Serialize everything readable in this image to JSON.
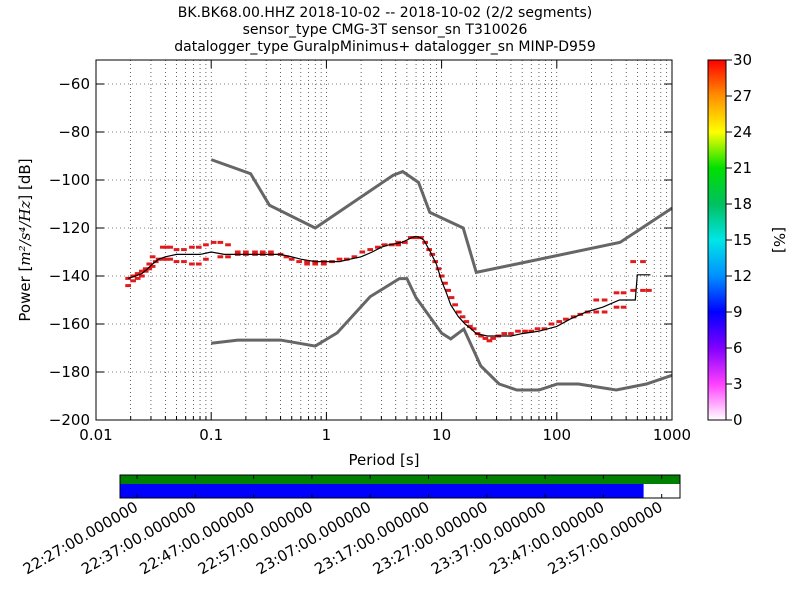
{
  "title_lines": [
    "BK.BK68.00.HHZ   2018-10-02 -- 2018-10-02  (2/2 segments)",
    "sensor_type CMG-3T sensor_sn T310026",
    "datalogger_type GuralpMinimus+ datalogger_sn MINP-D959"
  ],
  "xlabel": "Period [s]",
  "ylabel_parts": {
    "pre": "Power [",
    "math": "m²/s⁴/Hz",
    "post": "] [dB]"
  },
  "colorbar_label": "[%]",
  "colors": {
    "noise_model": "#666666",
    "mean": "#000000",
    "ppsd_cell": "#e31a1c",
    "availability_green": "#008000",
    "availability_blue": "#0000ff"
  },
  "chart_data": {
    "type": "ppsd",
    "x_scale": "log",
    "xlim": [
      0.01,
      1000
    ],
    "ylim": [
      -200,
      -50
    ],
    "xticks": [
      0.01,
      0.1,
      1,
      10,
      100,
      1000
    ],
    "xtick_labels": [
      "0.01",
      "0.1",
      "1",
      "10",
      "100",
      "1000"
    ],
    "yticks": [
      -60,
      -80,
      -100,
      -120,
      -140,
      -160,
      -180,
      -200
    ],
    "ytick_labels": [
      "−60",
      "−80",
      "−100",
      "−120",
      "−140",
      "−160",
      "−180",
      "−200"
    ],
    "grid": "dotted",
    "high_noise_model": {
      "x": [
        0.1,
        0.22,
        0.32,
        0.8,
        3.8,
        4.6,
        6.3,
        7.9,
        15.4,
        20,
        354,
        10000
      ],
      "y": [
        -91.5,
        -97.4,
        -110.5,
        -120,
        -98,
        -96.5,
        -101,
        -113.5,
        -120,
        -138.5,
        -126,
        -80
      ]
    },
    "low_noise_model": {
      "x": [
        0.1,
        0.17,
        0.4,
        0.8,
        1.24,
        2.4,
        4.3,
        5,
        6,
        10,
        12,
        15.6,
        21.9,
        31.6,
        45,
        70,
        101,
        154,
        328,
        600,
        10000
      ],
      "y": [
        -168,
        -166.7,
        -166.7,
        -169.2,
        -163.7,
        -148.6,
        -141.1,
        -141.1,
        -149,
        -163.8,
        -166.2,
        -162.1,
        -177.5,
        -185,
        -187.5,
        -187.5,
        -185,
        -185,
        -187.5,
        -185,
        -165
      ]
    },
    "mean": {
      "x": [
        0.019,
        0.022,
        0.025,
        0.028,
        0.031,
        0.035,
        0.04,
        0.05,
        0.065,
        0.08,
        0.1,
        0.13,
        0.2,
        0.3,
        0.4,
        0.5,
        0.6,
        0.8,
        1,
        1.3,
        1.6,
        2,
        2.5,
        3,
        3.5,
        4,
        4.5,
        5,
        5.5,
        6,
        6.5,
        7,
        8,
        9,
        10,
        11,
        12,
        14,
        16,
        18,
        20,
        25,
        30,
        40,
        50,
        70,
        100,
        130,
        180,
        250,
        350,
        480,
        500,
        650
      ],
      "y": [
        -141,
        -140,
        -139,
        -137,
        -135,
        -133,
        -132,
        -131,
        -131,
        -131,
        -130,
        -131,
        -131,
        -131,
        -131,
        -132,
        -133,
        -134,
        -134,
        -134,
        -133,
        -132,
        -130,
        -128,
        -127,
        -126.5,
        -126,
        -125,
        -124,
        -123.5,
        -124,
        -125,
        -130,
        -135,
        -142,
        -147,
        -152,
        -157,
        -160,
        -162,
        -164,
        -165,
        -165,
        -165,
        -164,
        -163,
        -161,
        -158,
        -155,
        -153,
        -150,
        -150,
        -139.5,
        -139.5
      ]
    },
    "ppsd_cells": [
      {
        "x": 0.019,
        "y": -144
      },
      {
        "x": 0.019,
        "y": -141
      },
      {
        "x": 0.021,
        "y": -142
      },
      {
        "x": 0.021,
        "y": -140
      },
      {
        "x": 0.023,
        "y": -141
      },
      {
        "x": 0.023,
        "y": -139
      },
      {
        "x": 0.025,
        "y": -140
      },
      {
        "x": 0.025,
        "y": -138
      },
      {
        "x": 0.027,
        "y": -138
      },
      {
        "x": 0.027,
        "y": -137
      },
      {
        "x": 0.029,
        "y": -137
      },
      {
        "x": 0.029,
        "y": -135
      },
      {
        "x": 0.031,
        "y": -136
      },
      {
        "x": 0.031,
        "y": -132
      },
      {
        "x": 0.033,
        "y": -134
      },
      {
        "x": 0.035,
        "y": -133
      },
      {
        "x": 0.038,
        "y": -128
      },
      {
        "x": 0.041,
        "y": -128
      },
      {
        "x": 0.044,
        "y": -128
      },
      {
        "x": 0.038,
        "y": -133
      },
      {
        "x": 0.041,
        "y": -133
      },
      {
        "x": 0.044,
        "y": -133
      },
      {
        "x": 0.05,
        "y": -129
      },
      {
        "x": 0.058,
        "y": -129
      },
      {
        "x": 0.05,
        "y": -134
      },
      {
        "x": 0.058,
        "y": -134
      },
      {
        "x": 0.068,
        "y": -128
      },
      {
        "x": 0.078,
        "y": -128
      },
      {
        "x": 0.068,
        "y": -135
      },
      {
        "x": 0.078,
        "y": -135
      },
      {
        "x": 0.09,
        "y": -127
      },
      {
        "x": 0.09,
        "y": -133
      },
      {
        "x": 0.105,
        "y": -126
      },
      {
        "x": 0.12,
        "y": -126
      },
      {
        "x": 0.14,
        "y": -127
      },
      {
        "x": 0.12,
        "y": -132
      },
      {
        "x": 0.14,
        "y": -132
      },
      {
        "x": 0.17,
        "y": -130
      },
      {
        "x": 0.2,
        "y": -130
      },
      {
        "x": 0.24,
        "y": -130
      },
      {
        "x": 0.28,
        "y": -130
      },
      {
        "x": 0.33,
        "y": -130
      },
      {
        "x": 0.17,
        "y": -131
      },
      {
        "x": 0.2,
        "y": -131
      },
      {
        "x": 0.24,
        "y": -131
      },
      {
        "x": 0.28,
        "y": -131
      },
      {
        "x": 0.33,
        "y": -131
      },
      {
        "x": 0.4,
        "y": -131
      },
      {
        "x": 0.45,
        "y": -132
      },
      {
        "x": 0.5,
        "y": -133
      },
      {
        "x": 0.58,
        "y": -134
      },
      {
        "x": 0.68,
        "y": -134
      },
      {
        "x": 0.8,
        "y": -134
      },
      {
        "x": 0.95,
        "y": -134
      },
      {
        "x": 0.68,
        "y": -135
      },
      {
        "x": 0.8,
        "y": -135
      },
      {
        "x": 0.95,
        "y": -135
      },
      {
        "x": 1.12,
        "y": -134
      },
      {
        "x": 1.3,
        "y": -133
      },
      {
        "x": 1.5,
        "y": -133
      },
      {
        "x": 1.75,
        "y": -132
      },
      {
        "x": 2.05,
        "y": -130
      },
      {
        "x": 2.4,
        "y": -129
      },
      {
        "x": 2.8,
        "y": -128
      },
      {
        "x": 3.2,
        "y": -127
      },
      {
        "x": 3.7,
        "y": -127
      },
      {
        "x": 4.2,
        "y": -126
      },
      {
        "x": 4.2,
        "y": -127
      },
      {
        "x": 4.8,
        "y": -126
      },
      {
        "x": 5.4,
        "y": -124
      },
      {
        "x": 6.0,
        "y": -124
      },
      {
        "x": 6.6,
        "y": -124
      },
      {
        "x": 7.2,
        "y": -126
      },
      {
        "x": 7.8,
        "y": -129
      },
      {
        "x": 8.3,
        "y": -131
      },
      {
        "x": 8.8,
        "y": -134
      },
      {
        "x": 9.4,
        "y": -137
      },
      {
        "x": 10.0,
        "y": -140
      },
      {
        "x": 10.7,
        "y": -143
      },
      {
        "x": 11.4,
        "y": -146
      },
      {
        "x": 12.2,
        "y": -149
      },
      {
        "x": 13.1,
        "y": -152
      },
      {
        "x": 14.1,
        "y": -155
      },
      {
        "x": 15.2,
        "y": -157
      },
      {
        "x": 16.4,
        "y": -159
      },
      {
        "x": 17.6,
        "y": -161
      },
      {
        "x": 19,
        "y": -162
      },
      {
        "x": 20.5,
        "y": -164
      },
      {
        "x": 22,
        "y": -165
      },
      {
        "x": 24,
        "y": -166
      },
      {
        "x": 26,
        "y": -167
      },
      {
        "x": 28,
        "y": -166
      },
      {
        "x": 31,
        "y": -165
      },
      {
        "x": 35,
        "y": -164
      },
      {
        "x": 40,
        "y": -164
      },
      {
        "x": 46,
        "y": -163
      },
      {
        "x": 53,
        "y": -163
      },
      {
        "x": 60,
        "y": -163
      },
      {
        "x": 68,
        "y": -162
      },
      {
        "x": 78,
        "y": -162
      },
      {
        "x": 90,
        "y": -160
      },
      {
        "x": 105,
        "y": -159
      },
      {
        "x": 120,
        "y": -158
      },
      {
        "x": 140,
        "y": -157
      },
      {
        "x": 160,
        "y": -156
      },
      {
        "x": 185,
        "y": -155
      },
      {
        "x": 220,
        "y": -150
      },
      {
        "x": 260,
        "y": -150
      },
      {
        "x": 220,
        "y": -155
      },
      {
        "x": 260,
        "y": -155
      },
      {
        "x": 330,
        "y": -147
      },
      {
        "x": 380,
        "y": -147
      },
      {
        "x": 330,
        "y": -153
      },
      {
        "x": 380,
        "y": -153
      },
      {
        "x": 460,
        "y": -134
      },
      {
        "x": 560,
        "y": -134
      },
      {
        "x": 460,
        "y": -146
      },
      {
        "x": 560,
        "y": -146
      },
      {
        "x": 630,
        "y": -146
      }
    ],
    "colorbar": {
      "range": [
        0,
        30
      ],
      "ticks": [
        0,
        3,
        6,
        9,
        12,
        15,
        18,
        21,
        24,
        27,
        30
      ],
      "tick_labels": [
        "0",
        "3",
        "6",
        "9",
        "12",
        "15",
        "18",
        "21",
        "24",
        "27",
        "30"
      ],
      "colormap": [
        "#ffffff",
        "#ff40ff",
        "#8000ff",
        "#0000ff",
        "#0090ff",
        "#00e6e6",
        "#00c060",
        "#00e000",
        "#ffff00",
        "#ff9000",
        "#ff0000"
      ]
    },
    "availability": {
      "time_labels": [
        "22:27:00.000000",
        "22:37:00.000000",
        "22:47:00.000000",
        "22:57:00.000000",
        "23:07:00.000000",
        "23:17:00.000000",
        "23:27:00.000000",
        "23:37:00.000000",
        "23:47:00.000000",
        "23:57:00.000000"
      ],
      "data_coverage_fraction": 1.0,
      "psd_coverage_fraction": 0.935
    }
  }
}
